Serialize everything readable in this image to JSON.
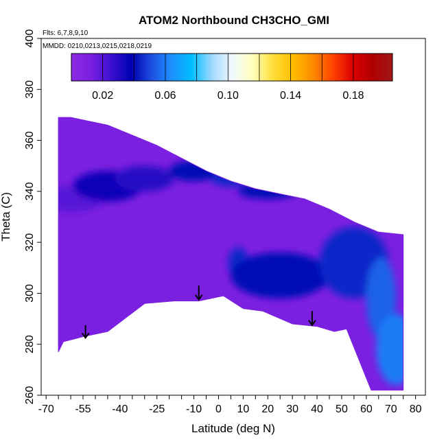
{
  "chart_data": {
    "type": "heatmap",
    "title": "ATOM2 Northbound CH3CHO_GMI",
    "annotations": [
      "Flts: 6,7,8,9,10",
      "MMDD: 0210,0213,0215,0218,0219"
    ],
    "xlabel": "Latitude (deg N)",
    "ylabel": "Theta (C)",
    "xlim": [
      -72,
      84
    ],
    "ylim": [
      260,
      400
    ],
    "x_ticks": [
      -70,
      -55,
      -40,
      -25,
      -10,
      0,
      10,
      20,
      30,
      40,
      50,
      60,
      70,
      80
    ],
    "x_tick_labels": [
      "-70",
      "-55",
      "-40",
      "-25",
      "-10",
      "0",
      "10",
      "20",
      "30",
      "40",
      "50",
      "60",
      "70",
      "80"
    ],
    "y_ticks": [
      260,
      280,
      300,
      320,
      340,
      360,
      380,
      400
    ],
    "y_tick_labels": [
      "260",
      "280",
      "300",
      "320",
      "340",
      "360",
      "380",
      "400"
    ],
    "colorbar": {
      "range": [
        0,
        0.205
      ],
      "tick_values": [
        0.02,
        0.06,
        0.1,
        0.14,
        0.18
      ],
      "tick_labels": [
        "0.02",
        "0.06",
        "0.10",
        "0.14",
        "0.18"
      ],
      "colors": [
        "#8a2be2",
        "#7a1fe0",
        "#3a10d0",
        "#0000b0",
        "#1e4fe0",
        "#1e90ff",
        "#00bfff",
        "#a0d8ff",
        "#f0f8ff",
        "#ffffc0",
        "#ffe040",
        "#ffc000",
        "#ff8c00",
        "#ff4500",
        "#dd0000",
        "#b00000",
        "#a01818"
      ]
    },
    "boundary": {
      "top": [
        [
          -65,
          369
        ],
        [
          -60,
          369
        ],
        [
          -55,
          368
        ],
        [
          -45,
          366
        ],
        [
          -35,
          362
        ],
        [
          -25,
          358
        ],
        [
          -15,
          353
        ],
        [
          -5,
          348
        ],
        [
          5,
          344
        ],
        [
          15,
          341
        ],
        [
          25,
          339
        ],
        [
          35,
          337
        ],
        [
          45,
          333
        ],
        [
          55,
          328
        ],
        [
          65,
          324
        ],
        [
          75,
          323
        ]
      ],
      "bottom": [
        [
          -65,
          277
        ],
        [
          -63,
          281
        ],
        [
          -55,
          283
        ],
        [
          -45,
          285
        ],
        [
          -30,
          296
        ],
        [
          -18,
          297
        ],
        [
          -8,
          297
        ],
        [
          2,
          299
        ],
        [
          10,
          294
        ],
        [
          18,
          293
        ],
        [
          30,
          288
        ],
        [
          40,
          287
        ],
        [
          47,
          285
        ],
        [
          52,
          286
        ],
        [
          62,
          262
        ],
        [
          75,
          262
        ]
      ]
    },
    "field_features": [
      {
        "x": -60,
        "y": 337,
        "rx": 14,
        "ry": 5,
        "value": 0.02
      },
      {
        "x": -45,
        "y": 342,
        "rx": 14,
        "ry": 6,
        "value": 0.035
      },
      {
        "x": -30,
        "y": 345,
        "rx": 12,
        "ry": 5,
        "value": 0.03
      },
      {
        "x": -10,
        "y": 348,
        "rx": 10,
        "ry": 4,
        "value": 0.04
      },
      {
        "x": 5,
        "y": 345,
        "rx": 8,
        "ry": 3,
        "value": 0.045
      },
      {
        "x": 20,
        "y": 340,
        "rx": 12,
        "ry": 3,
        "value": 0.04
      },
      {
        "x": 8,
        "y": 312,
        "rx": 4,
        "ry": 6,
        "value": 0.045
      },
      {
        "x": 25,
        "y": 307,
        "rx": 20,
        "ry": 9,
        "value": 0.04
      },
      {
        "x": 55,
        "y": 312,
        "rx": 14,
        "ry": 14,
        "value": 0.045
      },
      {
        "x": 66,
        "y": 298,
        "rx": 6,
        "ry": 16,
        "value": 0.055
      },
      {
        "x": 72,
        "y": 278,
        "rx": 8,
        "ry": 14,
        "value": 0.06
      }
    ],
    "arrows": [
      {
        "x": -54,
        "y_top": 287.5,
        "y_bottom": 282.5
      },
      {
        "x": -8,
        "y_top": 303,
        "y_bottom": 297.5
      },
      {
        "x": 38,
        "y_top": 293,
        "y_bottom": 287.5
      }
    ]
  }
}
